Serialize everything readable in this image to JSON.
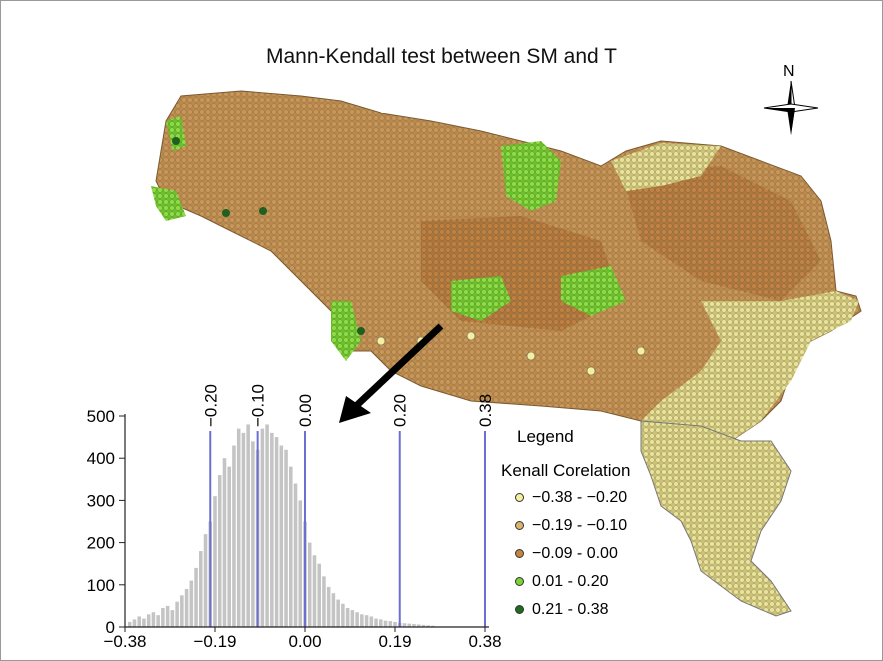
{
  "title": "Mann-Kendall test between SM and T",
  "north_label": "N",
  "legend": {
    "title": "Legend",
    "subtitle": "Kenall Corelation",
    "items": [
      {
        "label": "−0.38 - −0.20",
        "color": "#f4f0a0"
      },
      {
        "label": "−0.19 - −0.10",
        "color": "#d9b46a"
      },
      {
        "label": "−0.09 - 0.00",
        "color": "#c8843c"
      },
      {
        "label": "0.01 - 0.20",
        "color": "#7fd13a"
      },
      {
        "label": "0.21 - 0.38",
        "color": "#1f6b1f"
      }
    ]
  },
  "chart_data": {
    "type": "bar",
    "x_ticks": [
      "−0.38",
      "−0.19",
      "0.00",
      "0.19",
      "0.38"
    ],
    "y_ticks": [
      "0",
      "100",
      "200",
      "300",
      "400",
      "500"
    ],
    "xlim": [
      -0.38,
      0.38
    ],
    "ylim": [
      0,
      500
    ],
    "threshold_lines": [
      {
        "x": -0.2,
        "label": "−0.20"
      },
      {
        "x": -0.1,
        "label": "−0.10"
      },
      {
        "x": 0.0,
        "label": "0.00"
      },
      {
        "x": 0.2,
        "label": "0.20"
      },
      {
        "x": 0.38,
        "label": "0.38"
      }
    ],
    "x": [
      -0.37,
      -0.36,
      -0.35,
      -0.34,
      -0.33,
      -0.32,
      -0.31,
      -0.3,
      -0.29,
      -0.28,
      -0.27,
      -0.26,
      -0.25,
      -0.24,
      -0.23,
      -0.22,
      -0.21,
      -0.2,
      -0.19,
      -0.18,
      -0.17,
      -0.16,
      -0.15,
      -0.14,
      -0.13,
      -0.12,
      -0.11,
      -0.1,
      -0.09,
      -0.08,
      -0.07,
      -0.06,
      -0.05,
      -0.04,
      -0.03,
      -0.02,
      -0.01,
      0.0,
      0.01,
      0.02,
      0.03,
      0.04,
      0.05,
      0.06,
      0.07,
      0.08,
      0.09,
      0.1,
      0.11,
      0.12,
      0.13,
      0.14,
      0.15,
      0.16,
      0.17,
      0.18,
      0.19,
      0.2,
      0.21,
      0.22,
      0.23,
      0.24,
      0.25,
      0.26,
      0.27
    ],
    "values": [
      12,
      18,
      25,
      20,
      30,
      35,
      28,
      45,
      50,
      40,
      60,
      75,
      90,
      110,
      140,
      180,
      220,
      250,
      310,
      360,
      400,
      380,
      430,
      470,
      460,
      480,
      440,
      420,
      470,
      480,
      460,
      450,
      430,
      420,
      380,
      340,
      300,
      250,
      200,
      170,
      150,
      120,
      95,
      80,
      65,
      55,
      45,
      40,
      35,
      30,
      28,
      25,
      20,
      18,
      15,
      14,
      12,
      10,
      9,
      8,
      7,
      6,
      5,
      4,
      3
    ]
  }
}
